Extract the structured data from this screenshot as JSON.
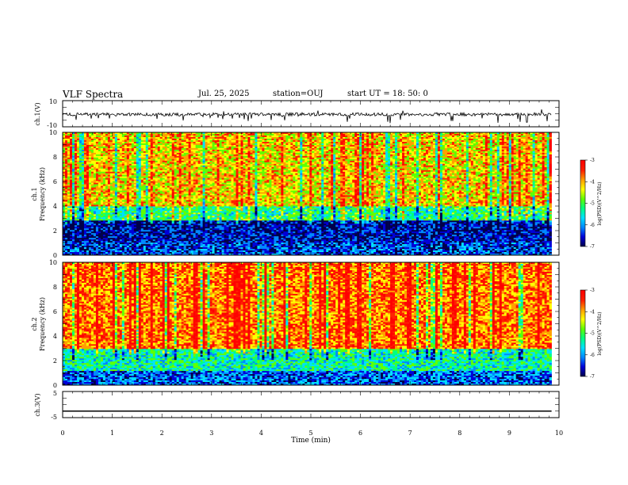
{
  "header": {
    "title": "VLF Spectra",
    "date": "Jul. 25, 2025",
    "station": "station=OUJ",
    "start": "start UT =  18: 50: 0"
  },
  "colors": {
    "spectral_stops": [
      "#00004a",
      "#0000d8",
      "#0088ff",
      "#00e0ff",
      "#00ff80",
      "#60ff00",
      "#ffff00",
      "#ffa000",
      "#ff2000",
      "#ff0000"
    ]
  },
  "chart_data": [
    {
      "type": "line",
      "name": "waveform-ch1",
      "ylabel": "ch.1(V)",
      "ylim": [
        -10,
        10
      ],
      "ytick_labels": [
        "10",
        "-10"
      ],
      "baseline": -0.5,
      "noise_amplitude": 1.2,
      "x": [
        0,
        9.85
      ]
    },
    {
      "type": "heatmap",
      "name": "spectrogram-ch1",
      "ylabel": "ch.1",
      "ylabel2": "Frequency (kHz)",
      "ylim": [
        0,
        10
      ],
      "yticks": [
        0,
        2,
        4,
        6,
        8,
        10
      ],
      "xlim": [
        0,
        9.85
      ],
      "zlabel": "log(PSD)(V^2/Hz)",
      "zlim": [
        -7,
        -3
      ],
      "zticks": [
        -3,
        -4,
        -5,
        -6,
        -7
      ],
      "colorbar_labels": [
        "-3",
        "-4",
        "-5",
        "-6",
        "-7"
      ],
      "intensity_profile": "mid-low",
      "seed": 7
    },
    {
      "type": "heatmap",
      "name": "spectrogram-ch2",
      "ylabel": "ch.2",
      "ylabel2": "Frequency (kHz)",
      "ylim": [
        0,
        10
      ],
      "yticks": [
        0,
        2,
        4,
        6,
        8,
        10
      ],
      "xlim": [
        0,
        9.85
      ],
      "zlabel": "log(PSD)(V^2/Hz)",
      "zlim": [
        -7,
        -3
      ],
      "zticks": [
        -3,
        -4,
        -5,
        -6,
        -7
      ],
      "colorbar_labels": [
        "-3",
        "-4",
        "-5",
        "-6",
        "-7"
      ],
      "intensity_profile": "high",
      "seed": 13
    },
    {
      "type": "line",
      "name": "waveform-ch3",
      "ylabel": "ch.3(V)",
      "ylim": [
        -5,
        5
      ],
      "ytick_labels": [
        "5",
        "-5"
      ],
      "baseline": -2.5,
      "x": [
        0,
        9.85
      ]
    }
  ],
  "xaxis": {
    "label": "Time (min)",
    "range": [
      0,
      10
    ],
    "ticks": [
      0,
      1,
      2,
      3,
      4,
      5,
      6,
      7,
      8,
      9,
      10
    ],
    "tick_labels": [
      "0",
      "1",
      "2",
      "3",
      "4",
      "5",
      "6",
      "7",
      "8",
      "9",
      "10"
    ]
  }
}
